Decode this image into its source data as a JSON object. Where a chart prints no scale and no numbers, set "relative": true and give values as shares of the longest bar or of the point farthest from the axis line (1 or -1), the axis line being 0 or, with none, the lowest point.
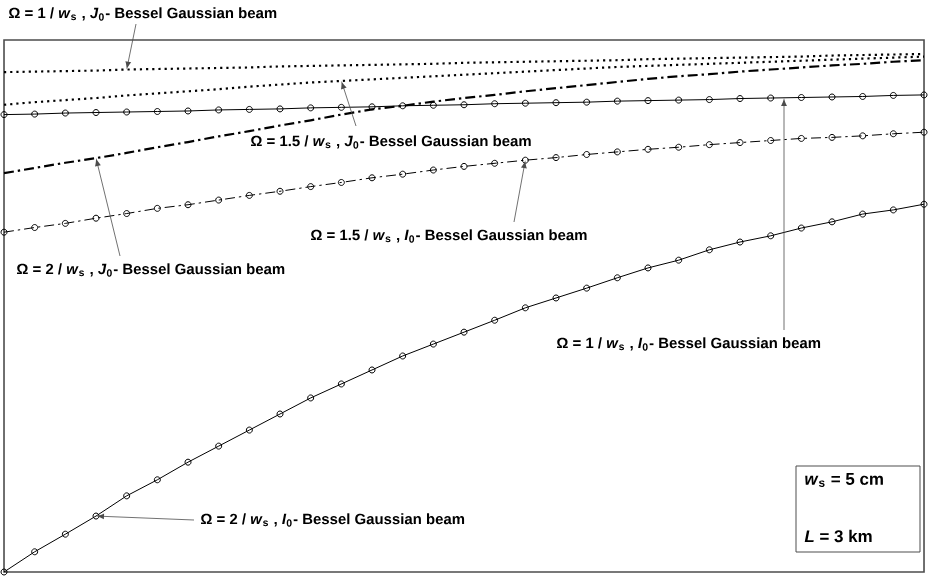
{
  "chart_data": {
    "type": "line",
    "relative": true,
    "categories": [
      null,
      null,
      null,
      null,
      null,
      null,
      null,
      null,
      null,
      null,
      null,
      null,
      null,
      null,
      null,
      null,
      null,
      null,
      null,
      null,
      null,
      null,
      null,
      null,
      null,
      null,
      null,
      null,
      null,
      null,
      null
    ],
    "series": [
      {
        "name": "Ω = 1 / *w*$_{s}$ , *J*$_{0}$- Bessel Gaussian beam",
        "color": "#000000",
        "marker": "none",
        "line_style": "dotted",
        "values": [
          0.965,
          0.966,
          0.967,
          0.968,
          0.97,
          0.971,
          0.972,
          0.973,
          0.974,
          0.976,
          0.977,
          0.978,
          0.979,
          0.98,
          0.981,
          0.983,
          0.984,
          0.985,
          0.986,
          0.987,
          0.988,
          0.99,
          0.991,
          0.992,
          0.993,
          0.994,
          0.995,
          0.997,
          0.998,
          0.999,
          1.0
        ]
      },
      {
        "name": "Ω = 1.5 / *w*$_{s}$ , *J*$_{0}$- Bessel Gaussian beam",
        "color": "#000000",
        "marker": "none",
        "line_style": "dotted",
        "values": [
          0.902,
          0.907,
          0.911,
          0.915,
          0.92,
          0.924,
          0.928,
          0.932,
          0.937,
          0.941,
          0.945,
          0.948,
          0.951,
          0.954,
          0.957,
          0.96,
          0.963,
          0.966,
          0.969,
          0.972,
          0.975,
          0.977,
          0.979,
          0.981,
          0.983,
          0.985,
          0.987,
          0.989,
          0.991,
          0.993,
          0.995
        ]
      },
      {
        "name": "Ω = 2 / *w*$_{s}$ , *J*$_{0}$- Bessel Gaussian beam",
        "color": "#000000",
        "marker": "none",
        "line_style": "dashed",
        "values": [
          0.77,
          0.78,
          0.79,
          0.799,
          0.809,
          0.82,
          0.83,
          0.841,
          0.851,
          0.862,
          0.872,
          0.883,
          0.893,
          0.9,
          0.908,
          0.915,
          0.921,
          0.928,
          0.934,
          0.94,
          0.946,
          0.952,
          0.957,
          0.961,
          0.966,
          0.97,
          0.974,
          0.978,
          0.981,
          0.985,
          0.988
        ]
      },
      {
        "name": "Ω = 1 / *w*$_{s}$ , *I*$_{0}$- Bessel Gaussian beam",
        "color": "#000000",
        "marker": "circle",
        "line_style": "solid",
        "values": [
          0.883,
          0.884,
          0.886,
          0.887,
          0.888,
          0.889,
          0.89,
          0.892,
          0.893,
          0.894,
          0.896,
          0.897,
          0.898,
          0.9,
          0.901,
          0.902,
          0.904,
          0.905,
          0.906,
          0.907,
          0.909,
          0.91,
          0.911,
          0.912,
          0.914,
          0.915,
          0.916,
          0.917,
          0.918,
          0.92,
          0.921
        ]
      },
      {
        "name": "Ω = 1.5 / *w*$_{s}$ , *I*$_{0}$- Bessel Gaussian beam",
        "color": "#000000",
        "marker": "circle",
        "line_style": "dashed",
        "values": [
          0.656,
          0.665,
          0.673,
          0.683,
          0.692,
          0.702,
          0.709,
          0.718,
          0.727,
          0.735,
          0.744,
          0.752,
          0.761,
          0.768,
          0.776,
          0.783,
          0.789,
          0.795,
          0.8,
          0.806,
          0.811,
          0.816,
          0.82,
          0.825,
          0.829,
          0.833,
          0.837,
          0.839,
          0.842,
          0.846,
          0.849
        ]
      },
      {
        "name": "Ω = 2 / *w*$_{s}$ , *I*$_{0}$- Bessel Gaussian beam",
        "color": "#000000",
        "marker": "circle",
        "line_style": "solid",
        "values": [
          0,
          0.039,
          0.073,
          0.108,
          0.147,
          0.178,
          0.212,
          0.243,
          0.274,
          0.305,
          0.336,
          0.363,
          0.39,
          0.417,
          0.44,
          0.463,
          0.486,
          0.51,
          0.529,
          0.548,
          0.568,
          0.587,
          0.602,
          0.622,
          0.637,
          0.649,
          0.664,
          0.676,
          0.691,
          0.699,
          0.71
        ]
      }
    ],
    "annotations": [
      "*w*$_{s}$ = 5 cm",
      "*L* = 3 km"
    ]
  }
}
